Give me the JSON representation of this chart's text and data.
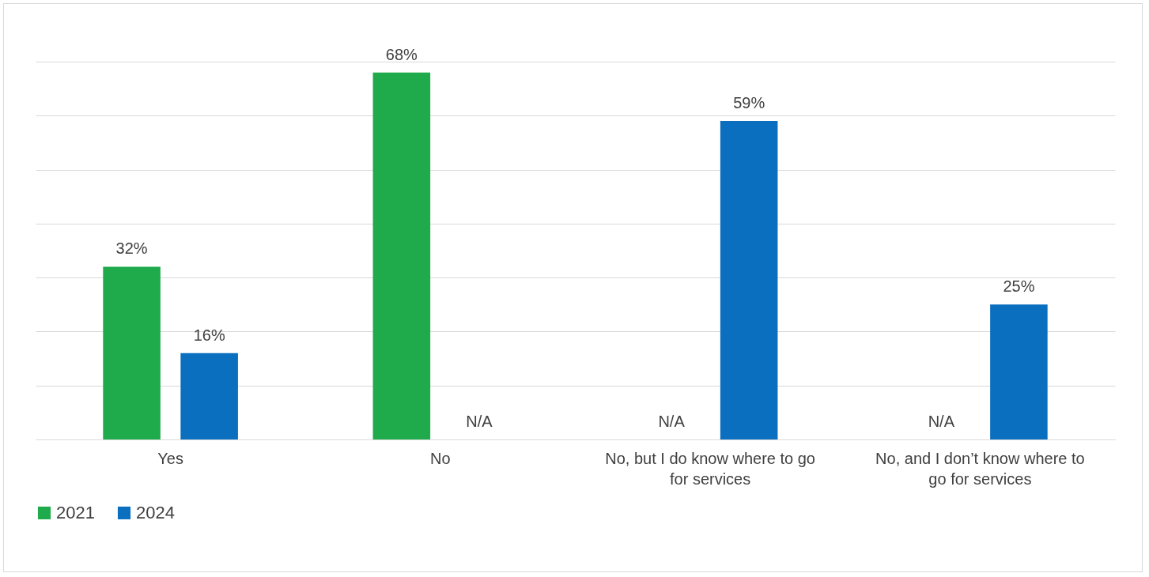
{
  "chart_data": {
    "type": "bar",
    "categories": [
      "Yes",
      "No",
      "No, but I do know where to go for services",
      "No, and I don’t know where to go for services"
    ],
    "series": [
      {
        "name": "2021",
        "color": "#1faa4b",
        "values": [
          32,
          68,
          null,
          null
        ],
        "value_labels": [
          "32%",
          "68%",
          "N/A",
          "N/A"
        ]
      },
      {
        "name": "2024",
        "color": "#0b6fc0",
        "values": [
          16,
          null,
          59,
          25
        ],
        "value_labels": [
          "16%",
          "N/A",
          "59%",
          "25%"
        ]
      }
    ],
    "ylim": [
      0,
      70
    ],
    "yticks": [
      {
        "value": 0,
        "label": null
      },
      {
        "value": 10,
        "label": null
      },
      {
        "value": 20,
        "label": null
      },
      {
        "value": 30,
        "label": null
      },
      {
        "value": 40,
        "label": null
      },
      {
        "value": 50,
        "label": null
      },
      {
        "value": 60,
        "label": null
      },
      {
        "value": 70,
        "label": null
      }
    ],
    "grid": "y",
    "legend": "bottom",
    "tick_labels": "x"
  }
}
